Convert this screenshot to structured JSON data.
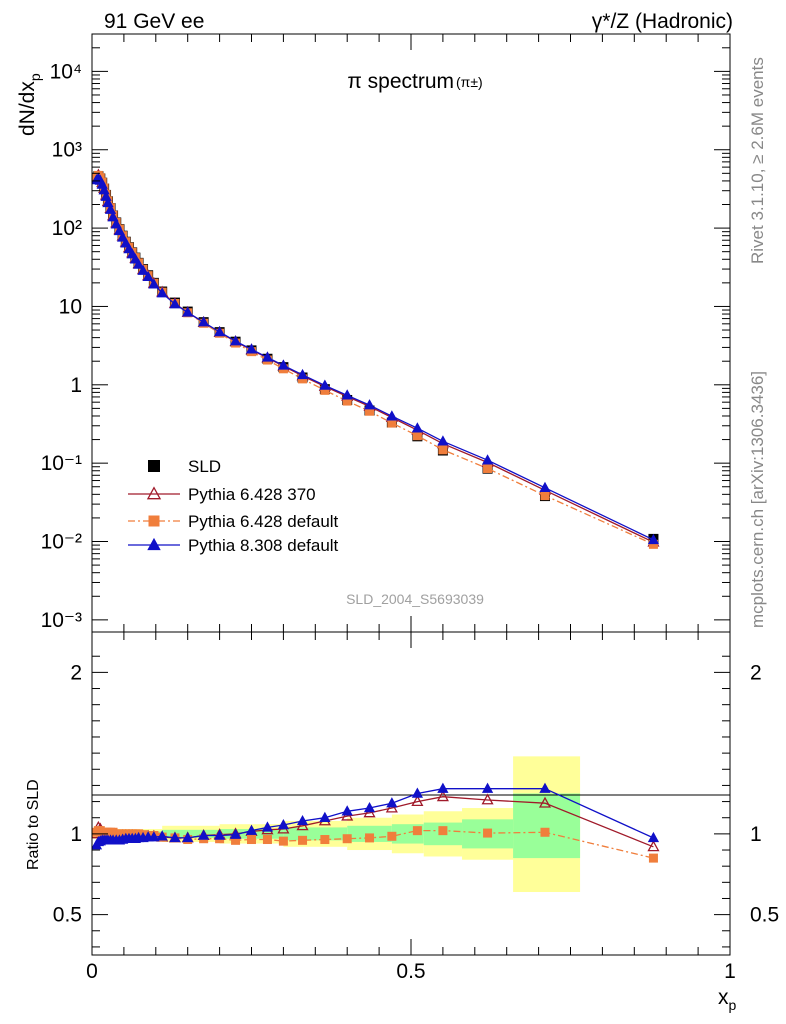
{
  "header": {
    "left": "91 GeV ee",
    "right": "γ*/Z (Hadronic)"
  },
  "side_labels": {
    "rivet": "Rivet 3.1.10, ≥ 2.6M events",
    "mcplots": "mcplots.cern.ch [arXiv:1306.3436]"
  },
  "chart_data": [
    {
      "type": "line",
      "title": "π spectrum",
      "title_sup": "(π±)",
      "ylabel": "dN/dx",
      "ylabel_sub": "p",
      "yscale": "log",
      "xlim": [
        0,
        1
      ],
      "ylim": [
        0.0007,
        30000
      ],
      "y_tick_labels": [
        "10⁻³",
        "10⁻²",
        "10⁻¹",
        "1",
        "10",
        "10²",
        "10³",
        "10⁴"
      ],
      "watermark": "SLD_2004_S5693039",
      "legend_position": "lower-left",
      "series": [
        {
          "name": "SLD",
          "color": "#000000",
          "marker": "square",
          "line": "none",
          "x": [
            0.007,
            0.01,
            0.013,
            0.016,
            0.019,
            0.022,
            0.025,
            0.029,
            0.033,
            0.038,
            0.043,
            0.048,
            0.053,
            0.058,
            0.063,
            0.068,
            0.073,
            0.08,
            0.088,
            0.097,
            0.11,
            0.13,
            0.15,
            0.175,
            0.2,
            0.225,
            0.25,
            0.275,
            0.3,
            0.33,
            0.365,
            0.4,
            0.435,
            0.47,
            0.51,
            0.55,
            0.62,
            0.71,
            0.88
          ],
          "y": [
            440,
            460,
            430,
            380,
            320,
            265,
            220,
            180,
            145,
            118,
            97,
            80,
            67,
            57,
            49,
            42,
            36,
            30,
            25,
            20,
            15.5,
            11.2,
            8.6,
            6.3,
            4.7,
            3.55,
            2.75,
            2.15,
            1.68,
            1.24,
            0.88,
            0.64,
            0.47,
            0.33,
            0.22,
            0.145,
            0.085,
            0.038,
            0.0108
          ]
        },
        {
          "name": "Pythia 6.428 370",
          "color": "#a01a2a",
          "marker": "open-triangle",
          "line": "solid",
          "x": [
            0.007,
            0.01,
            0.013,
            0.016,
            0.019,
            0.022,
            0.025,
            0.029,
            0.033,
            0.038,
            0.043,
            0.048,
            0.053,
            0.058,
            0.063,
            0.068,
            0.073,
            0.08,
            0.088,
            0.097,
            0.11,
            0.13,
            0.15,
            0.175,
            0.2,
            0.225,
            0.25,
            0.275,
            0.3,
            0.33,
            0.365,
            0.4,
            0.435,
            0.47,
            0.51,
            0.55,
            0.62,
            0.71,
            0.88
          ],
          "y": [
            440,
            475,
            445,
            380,
            320,
            262,
            218,
            178,
            143,
            116,
            95,
            79,
            66,
            56,
            48,
            41,
            35,
            29.5,
            24.6,
            19.7,
            15.2,
            10.9,
            8.4,
            6.25,
            4.67,
            3.56,
            2.79,
            2.2,
            1.73,
            1.3,
            0.95,
            0.71,
            0.53,
            0.382,
            0.263,
            0.177,
            0.102,
            0.045,
            0.0098
          ]
        },
        {
          "name": "Pythia 6.428 default",
          "color": "#f07e3c",
          "marker": "square",
          "line": "dashdot",
          "x": [
            0.007,
            0.01,
            0.013,
            0.016,
            0.019,
            0.022,
            0.025,
            0.029,
            0.033,
            0.038,
            0.043,
            0.048,
            0.053,
            0.058,
            0.063,
            0.068,
            0.073,
            0.08,
            0.088,
            0.097,
            0.11,
            0.13,
            0.15,
            0.175,
            0.2,
            0.225,
            0.25,
            0.275,
            0.3,
            0.33,
            0.365,
            0.4,
            0.435,
            0.47,
            0.51,
            0.55,
            0.62,
            0.71,
            0.88
          ],
          "y": [
            445,
            470,
            440,
            385,
            325,
            268,
            222,
            182,
            146,
            118,
            97,
            80,
            67,
            57,
            49,
            42,
            36,
            29.8,
            24.7,
            19.8,
            15.2,
            10.9,
            8.3,
            6.1,
            4.55,
            3.41,
            2.65,
            2.07,
            1.6,
            1.19,
            0.85,
            0.62,
            0.46,
            0.325,
            0.224,
            0.148,
            0.0855,
            0.0385,
            0.0092
          ]
        },
        {
          "name": "Pythia 8.308 default",
          "color": "#1010c8",
          "marker": "filled-triangle",
          "line": "solid",
          "x": [
            0.007,
            0.01,
            0.013,
            0.016,
            0.019,
            0.022,
            0.025,
            0.029,
            0.033,
            0.038,
            0.043,
            0.048,
            0.053,
            0.058,
            0.063,
            0.068,
            0.073,
            0.08,
            0.088,
            0.097,
            0.11,
            0.13,
            0.15,
            0.175,
            0.2,
            0.225,
            0.25,
            0.275,
            0.3,
            0.33,
            0.365,
            0.4,
            0.435,
            0.47,
            0.51,
            0.55,
            0.62,
            0.71,
            0.88
          ],
          "y": [
            410,
            430,
            405,
            360,
            305,
            252,
            210,
            172,
            138,
            112,
            92,
            76,
            64,
            54,
            46.5,
            40,
            34.3,
            28.6,
            23.9,
            19.2,
            14.8,
            10.7,
            8.4,
            6.3,
            4.72,
            3.6,
            2.84,
            2.24,
            1.77,
            1.34,
            0.98,
            0.735,
            0.55,
            0.397,
            0.279,
            0.19,
            0.109,
            0.0485,
            0.0105
          ]
        }
      ]
    },
    {
      "type": "line",
      "ylabel": "Ratio to SLD",
      "xlabel": "x",
      "xlabel_sub": "p",
      "xlim": [
        0,
        1
      ],
      "ylim": [
        0.25,
        2.25
      ],
      "x_tick_labels": [
        "0",
        "0.5",
        "1"
      ],
      "y_tick_labels": [
        "0.5",
        "1",
        "2"
      ],
      "bands": {
        "edges": [
          0.0,
          0.11,
          0.2,
          0.3,
          0.4,
          0.47,
          0.52,
          0.58,
          0.66,
          0.765,
          1.0
        ],
        "green": [
          [
            0.985,
            1.015
          ],
          [
            0.975,
            1.025
          ],
          [
            0.97,
            1.03
          ],
          [
            0.96,
            1.04
          ],
          [
            0.95,
            1.05
          ],
          [
            0.94,
            1.06
          ],
          [
            0.93,
            1.07
          ],
          [
            0.91,
            1.09
          ],
          [
            0.85,
            1.25
          ]
        ],
        "yellow": [
          [
            0.97,
            1.03
          ],
          [
            0.95,
            1.05
          ],
          [
            0.94,
            1.06
          ],
          [
            0.92,
            1.08
          ],
          [
            0.9,
            1.1
          ],
          [
            0.88,
            1.12
          ],
          [
            0.86,
            1.14
          ],
          [
            0.84,
            1.16
          ],
          [
            0.64,
            1.48
          ]
        ]
      },
      "series": [
        {
          "name": "Pythia 6.428 370",
          "color": "#a01a2a",
          "marker": "open-triangle",
          "line": "solid",
          "x": [
            0.007,
            0.01,
            0.013,
            0.016,
            0.019,
            0.022,
            0.025,
            0.029,
            0.033,
            0.038,
            0.043,
            0.048,
            0.053,
            0.058,
            0.063,
            0.068,
            0.073,
            0.08,
            0.088,
            0.097,
            0.11,
            0.13,
            0.15,
            0.175,
            0.2,
            0.225,
            0.25,
            0.275,
            0.3,
            0.33,
            0.365,
            0.4,
            0.435,
            0.47,
            0.51,
            0.55,
            0.62,
            0.71,
            0.88
          ],
          "y": [
            1.0,
            1.04,
            1.03,
            1.01,
            1.0,
            0.99,
            0.99,
            0.99,
            0.99,
            0.98,
            0.98,
            0.99,
            0.99,
            0.99,
            0.99,
            0.98,
            0.98,
            0.985,
            0.985,
            0.985,
            0.98,
            0.975,
            0.975,
            0.99,
            0.995,
            1.0,
            1.015,
            1.025,
            1.03,
            1.05,
            1.08,
            1.11,
            1.13,
            1.16,
            1.2,
            1.23,
            1.21,
            1.19,
            0.92
          ]
        },
        {
          "name": "Pythia 6.428 default",
          "color": "#f07e3c",
          "marker": "square",
          "line": "dashdot",
          "x": [
            0.007,
            0.01,
            0.013,
            0.016,
            0.019,
            0.022,
            0.025,
            0.029,
            0.033,
            0.038,
            0.043,
            0.048,
            0.053,
            0.058,
            0.063,
            0.068,
            0.073,
            0.08,
            0.088,
            0.097,
            0.11,
            0.13,
            0.15,
            0.175,
            0.2,
            0.225,
            0.25,
            0.275,
            0.3,
            0.33,
            0.365,
            0.4,
            0.435,
            0.47,
            0.51,
            0.55,
            0.62,
            0.71,
            0.88
          ],
          "y": [
            1.01,
            1.02,
            1.02,
            1.01,
            1.01,
            1.01,
            1.01,
            1.01,
            1.01,
            1.0,
            1.0,
            1.0,
            1.0,
            1.0,
            1.0,
            1.0,
            1.0,
            0.995,
            0.99,
            0.99,
            0.98,
            0.975,
            0.965,
            0.97,
            0.97,
            0.96,
            0.965,
            0.965,
            0.955,
            0.96,
            0.965,
            0.97,
            0.975,
            0.985,
            1.02,
            1.02,
            1.005,
            1.01,
            0.85
          ]
        },
        {
          "name": "Pythia 8.308 default",
          "color": "#1010c8",
          "marker": "filled-triangle",
          "line": "solid",
          "x": [
            0.007,
            0.01,
            0.013,
            0.016,
            0.019,
            0.022,
            0.025,
            0.029,
            0.033,
            0.038,
            0.043,
            0.048,
            0.053,
            0.058,
            0.063,
            0.068,
            0.073,
            0.08,
            0.088,
            0.097,
            0.11,
            0.13,
            0.15,
            0.175,
            0.2,
            0.225,
            0.25,
            0.275,
            0.3,
            0.33,
            0.365,
            0.4,
            0.435,
            0.47,
            0.51,
            0.55,
            0.62,
            0.71,
            0.88
          ],
          "y": [
            0.93,
            0.95,
            0.955,
            0.96,
            0.96,
            0.96,
            0.96,
            0.96,
            0.96,
            0.96,
            0.96,
            0.965,
            0.97,
            0.97,
            0.97,
            0.97,
            0.975,
            0.975,
            0.98,
            0.98,
            0.985,
            0.975,
            0.975,
            0.99,
            0.99,
            0.995,
            1.02,
            1.04,
            1.055,
            1.08,
            1.1,
            1.14,
            1.16,
            1.19,
            1.25,
            1.28,
            1.28,
            1.28,
            0.975
          ]
        }
      ]
    }
  ]
}
